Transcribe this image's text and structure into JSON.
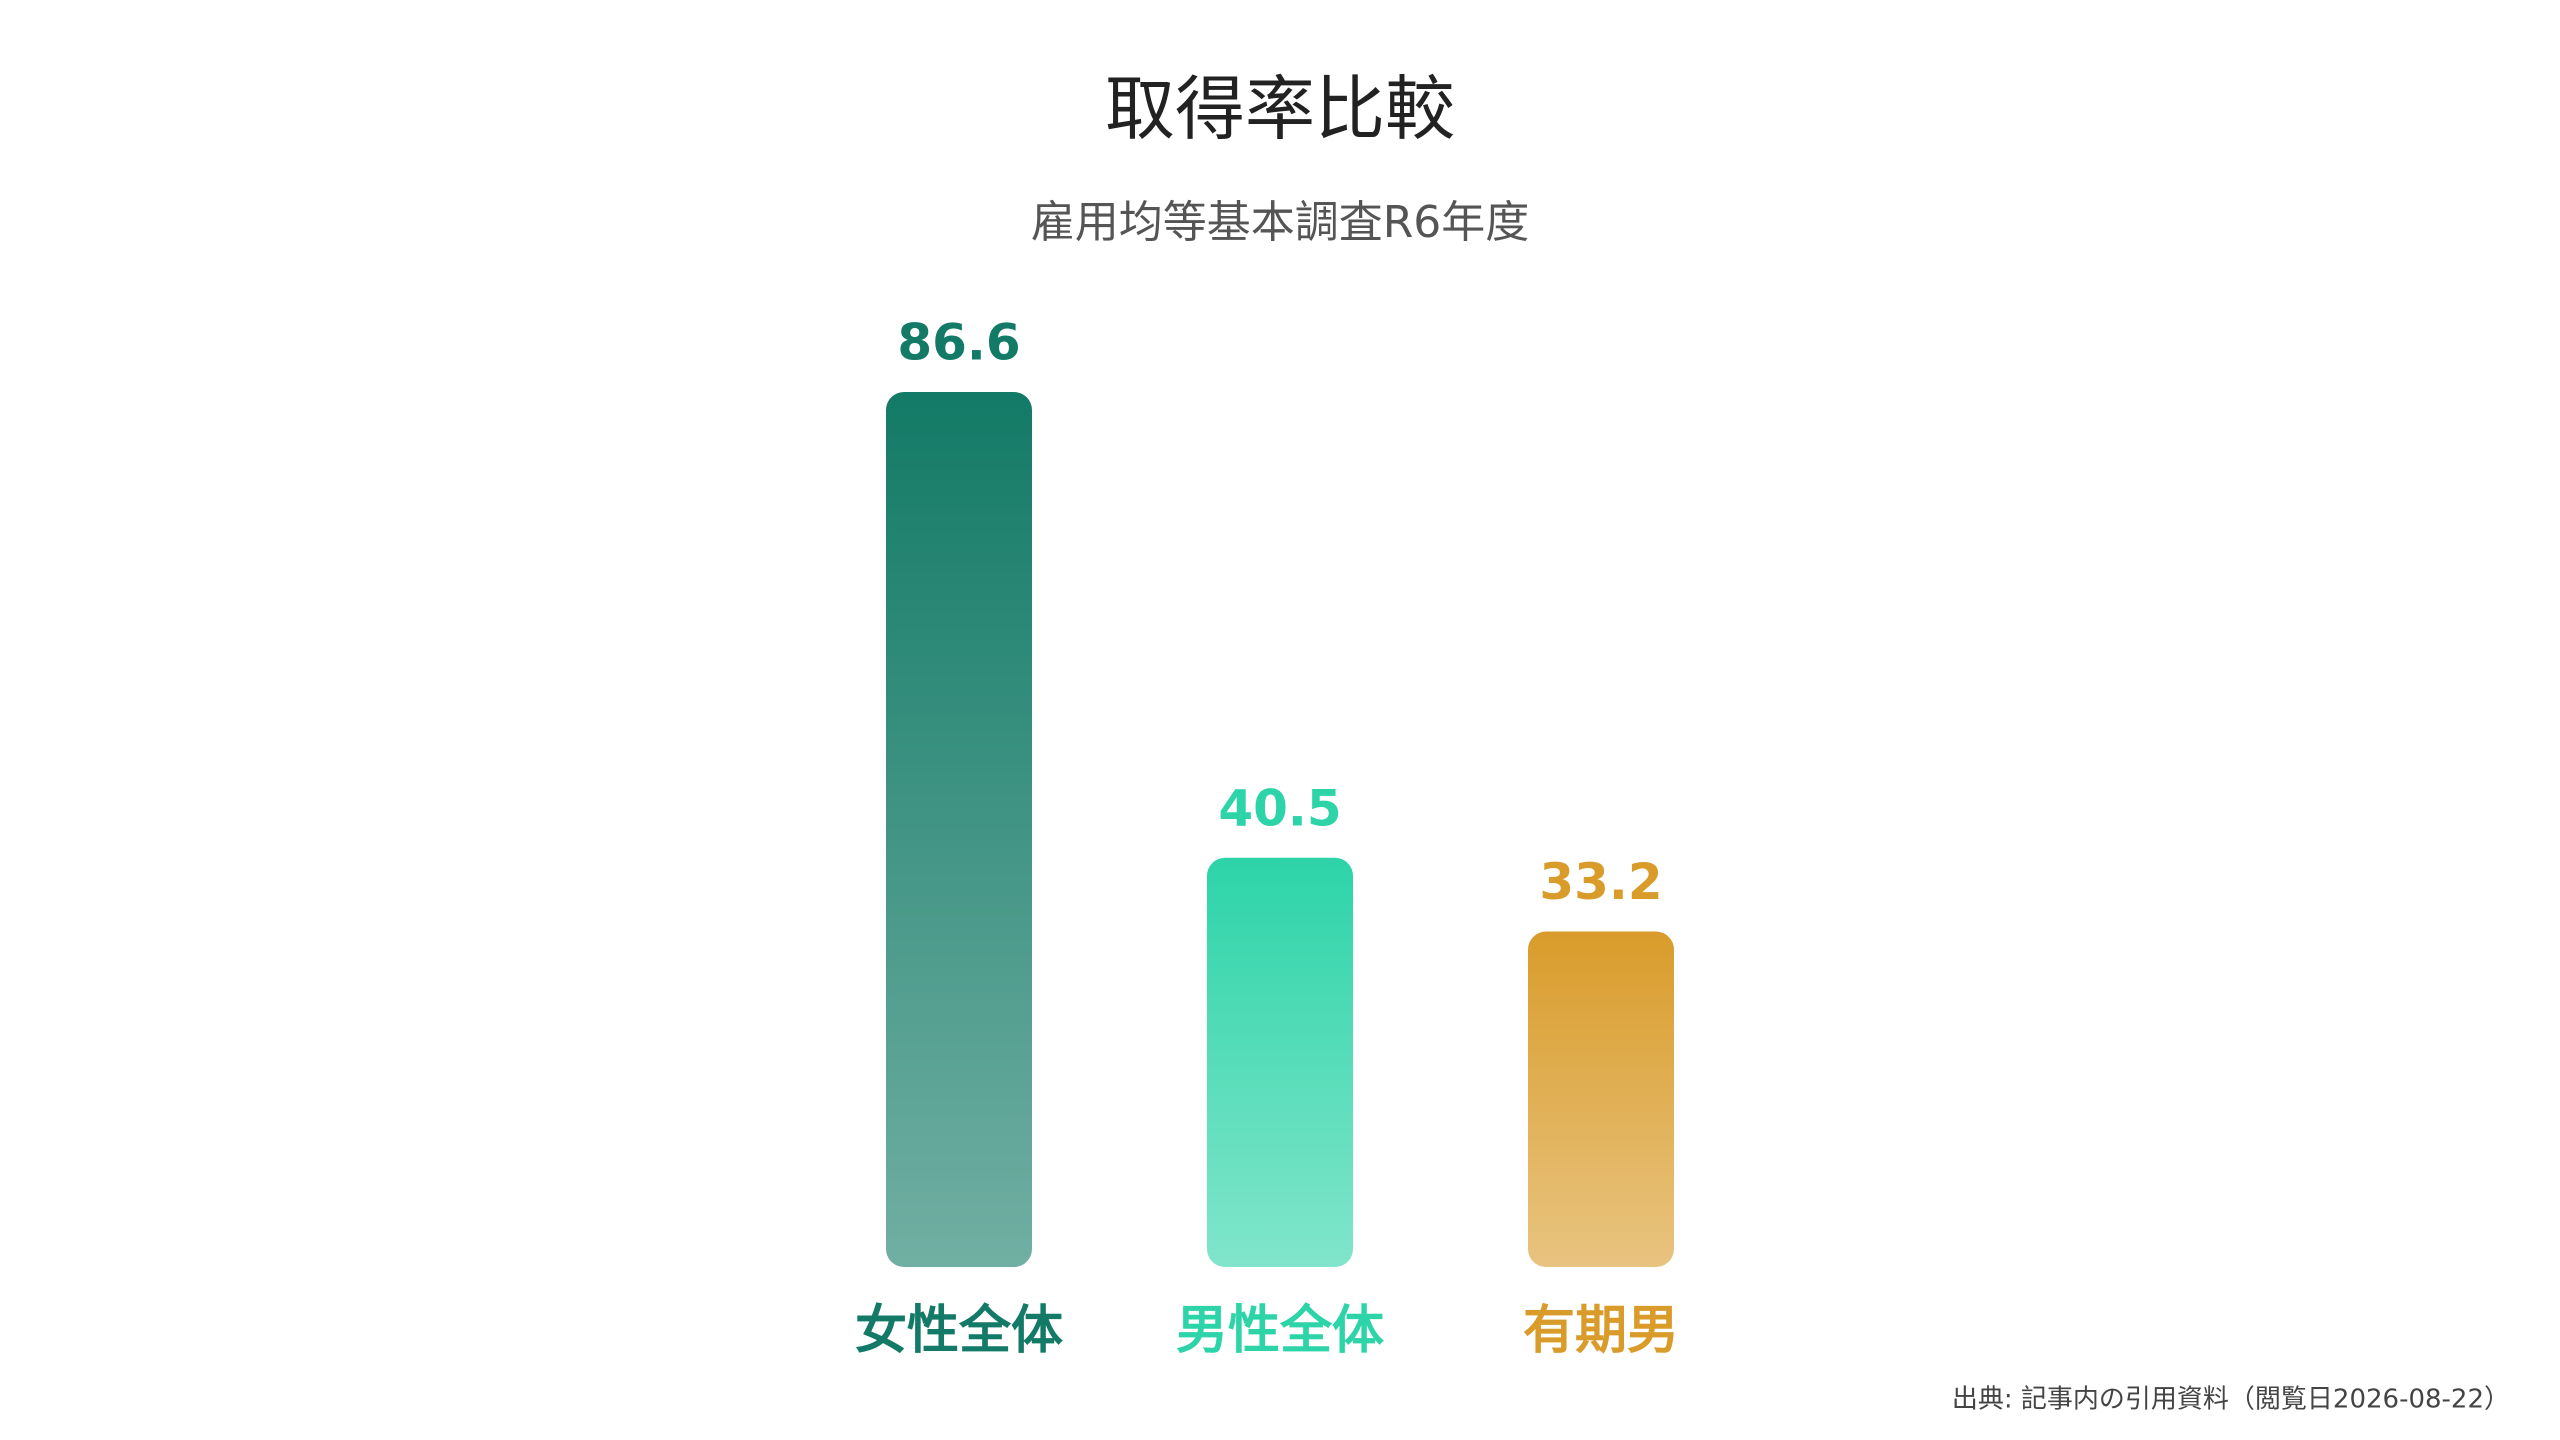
{
  "chart_data": {
    "type": "bar",
    "title": "取得率比較",
    "subtitle": "雇用均等基本調査R6年度",
    "categories": [
      "女性全体",
      "男性全体",
      "有期男"
    ],
    "values": [
      86.6,
      40.5,
      33.2
    ],
    "colors": [
      "#127a66",
      "#2dd4a8",
      "#d99c2b"
    ],
    "source": "出典: 記事内の引用資料（閲覧日2026-08-22）"
  }
}
